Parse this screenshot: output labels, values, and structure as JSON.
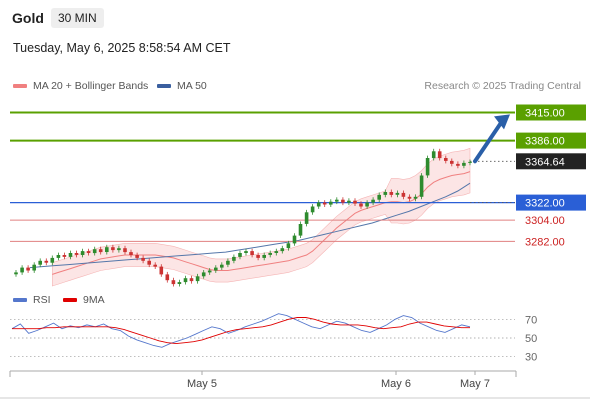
{
  "header": {
    "title": "Gold",
    "timeframe": "30 MIN",
    "datetime": "Tuesday, May 6, 2025 8:58:54 AM CET",
    "copyright": "Research © 2025 Trading Central"
  },
  "colors": {
    "ma20": "#f08080",
    "ma50": "#5577aa",
    "band_fill": "#fbdada",
    "resistance": "#5aa000",
    "support": "#2a5fd6",
    "minor_support": "#e08080",
    "arrow": "#2a5fa8",
    "rsi": "#5577cc",
    "rsi_ma": "#e00000",
    "candle_up": "#2e8b2e",
    "candle_down": "#cc3333"
  },
  "chart_data": [
    {
      "type": "candlestick",
      "legend": [
        {
          "name": "MA 20 + Bollinger Bands",
          "color": "#f08080"
        },
        {
          "name": "MA 50",
          "color": "#3a5f9f"
        }
      ],
      "ylim": [
        3236,
        3432
      ],
      "x_labels": [
        "May 5",
        "May 6",
        "May 7"
      ],
      "last_price": 3364.64,
      "levels": [
        {
          "value": 3415.0,
          "label": "3415.00",
          "kind": "resistance"
        },
        {
          "value": 3386.0,
          "label": "3386.00",
          "kind": "resistance"
        },
        {
          "value": 3364.64,
          "label": "3364.64",
          "kind": "current"
        },
        {
          "value": 3322.0,
          "label": "3322.00",
          "kind": "pivot"
        },
        {
          "value": 3304.0,
          "label": "3304.00",
          "kind": "support"
        },
        {
          "value": 3282.0,
          "label": "3282.00",
          "kind": "support"
        }
      ],
      "close": [
        3250,
        3255,
        3252,
        3258,
        3262,
        3260,
        3265,
        3268,
        3266,
        3270,
        3268,
        3272,
        3270,
        3274,
        3271,
        3276,
        3273,
        3275,
        3271,
        3268,
        3265,
        3262,
        3258,
        3256,
        3248,
        3242,
        3238,
        3240,
        3244,
        3241,
        3246,
        3250,
        3252,
        3255,
        3258,
        3262,
        3266,
        3270,
        3272,
        3268,
        3265,
        3268,
        3270,
        3272,
        3275,
        3280,
        3288,
        3300,
        3312,
        3318,
        3322,
        3320,
        3323,
        3325,
        3322,
        3324,
        3321,
        3318,
        3322,
        3325,
        3330,
        3333,
        3330,
        3332,
        3328,
        3326,
        3328,
        3350,
        3368,
        3375,
        3368,
        3365,
        3362,
        3360,
        3363,
        3364
      ],
      "ma20": [
        3248,
        3250,
        3252,
        3254,
        3256,
        3258,
        3260,
        3262,
        3264,
        3265,
        3266,
        3267,
        3268,
        3268,
        3268,
        3268,
        3268,
        3268,
        3267,
        3266,
        3265,
        3263,
        3261,
        3259,
        3257,
        3255,
        3253,
        3252,
        3252,
        3252,
        3253,
        3254,
        3255,
        3256,
        3257,
        3258,
        3259,
        3260,
        3261,
        3262,
        3264,
        3266,
        3268,
        3272,
        3278,
        3284,
        3290,
        3296,
        3301,
        3306,
        3311,
        3314,
        3316,
        3318,
        3320,
        3322,
        3323,
        3323,
        3322,
        3323,
        3326,
        3331,
        3338,
        3343,
        3346,
        3348,
        3350,
        3351,
        3352,
        3354
      ],
      "ma50": [
        3255,
        3256,
        3257,
        3258,
        3259,
        3260,
        3261,
        3262,
        3263,
        3264,
        3265,
        3266,
        3267,
        3268,
        3269,
        3270,
        3271,
        3273,
        3275,
        3277,
        3279,
        3281,
        3283,
        3286,
        3289,
        3292,
        3295,
        3298,
        3301,
        3305,
        3309,
        3313,
        3318,
        3323,
        3328,
        3334,
        3342
      ],
      "rsi": {
        "legend": [
          {
            "name": "RSI",
            "color": "#5577cc"
          },
          {
            "name": "9MA",
            "color": "#e00000"
          }
        ],
        "ylim": [
          20,
          80
        ],
        "ticks": [
          70,
          50,
          30
        ],
        "values": [
          60,
          65,
          55,
          58,
          62,
          66,
          60,
          63,
          61,
          64,
          62,
          65,
          60,
          58,
          52,
          48,
          45,
          42,
          40,
          44,
          47,
          50,
          54,
          58,
          62,
          60,
          55,
          58,
          62,
          65,
          68,
          72,
          76,
          74,
          70,
          66,
          62,
          60,
          64,
          68,
          66,
          62,
          58,
          56,
          60,
          64,
          70,
          74,
          72,
          66,
          62,
          58,
          56,
          60,
          64,
          62
        ],
        "ma": [
          60,
          60,
          60,
          60,
          61,
          61,
          62,
          62,
          62,
          62,
          62,
          62,
          61,
          59,
          56,
          53,
          50,
          47,
          45,
          44,
          45,
          46,
          48,
          51,
          54,
          57,
          59,
          60,
          61,
          62,
          64,
          67,
          70,
          72,
          72,
          70,
          67,
          65,
          64,
          64,
          64,
          63,
          61,
          60,
          61,
          62,
          65,
          67,
          67,
          65,
          63,
          62,
          61,
          61
        ]
      }
    }
  ]
}
